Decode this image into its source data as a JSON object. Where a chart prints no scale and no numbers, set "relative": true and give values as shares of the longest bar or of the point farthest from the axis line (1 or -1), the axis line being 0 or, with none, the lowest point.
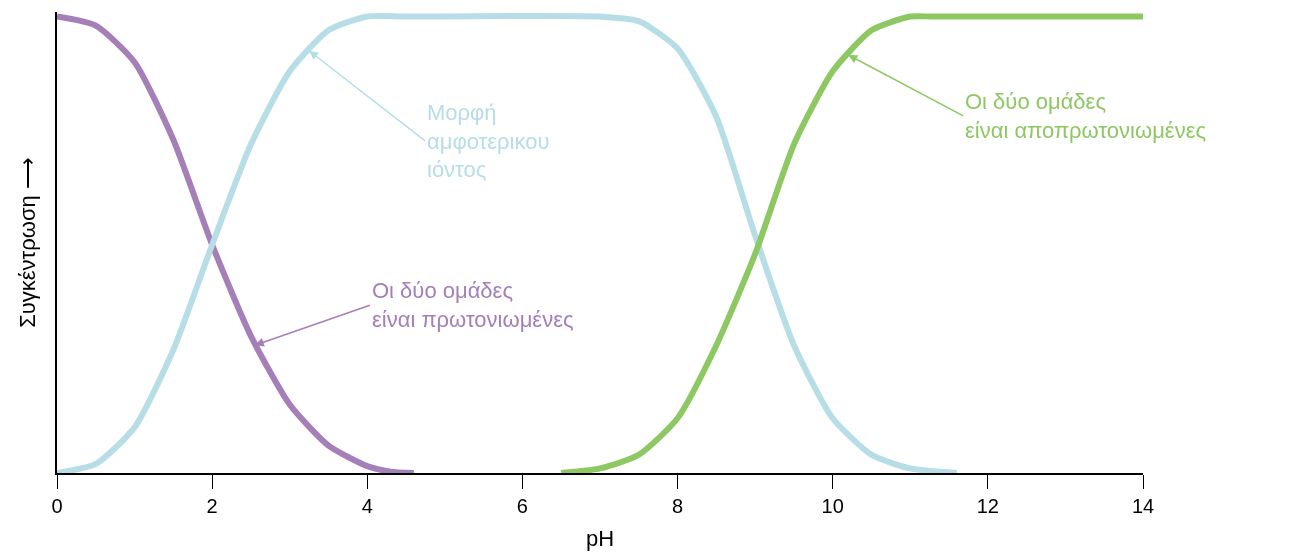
{
  "chart_data": {
    "type": "line",
    "relative": true,
    "xlabel": "pH",
    "ylabel": "Συγκέντρωση ⟶",
    "xlim": [
      0,
      14
    ],
    "xticks": [
      0,
      2,
      4,
      6,
      8,
      10,
      12,
      14
    ],
    "marker": "none",
    "line_style": "solid",
    "series": [
      {
        "color": "#a57fb8",
        "x": [
          0,
          0.5,
          1,
          1.5,
          2,
          2.5,
          3,
          3.5,
          4,
          4.3,
          4.6
        ],
        "values": [
          1,
          0.98,
          0.9,
          0.73,
          0.5,
          0.3,
          0.15,
          0.06,
          0.015,
          0.003,
          0
        ]
      },
      {
        "color": "#b7dde6",
        "x": [
          0,
          0.5,
          1,
          1.5,
          2,
          2.5,
          3,
          3.5,
          4,
          4.5,
          7,
          7.5,
          8,
          8.5,
          9,
          9.5,
          10,
          10.5,
          11,
          11.6
        ],
        "values": [
          0,
          0.02,
          0.1,
          0.27,
          0.5,
          0.72,
          0.88,
          0.97,
          1,
          1,
          1,
          0.99,
          0.93,
          0.78,
          0.52,
          0.28,
          0.12,
          0.04,
          0.01,
          0
        ]
      },
      {
        "color": "#8dc863",
        "x": [
          6.5,
          7,
          7.5,
          8,
          8.5,
          9,
          9.5,
          10,
          10.5,
          11,
          11.3,
          14
        ],
        "values": [
          0,
          0.01,
          0.04,
          0.12,
          0.28,
          0.48,
          0.72,
          0.88,
          0.97,
          1,
          1,
          1
        ]
      }
    ],
    "annotations": [
      {
        "text": "Οι δύο ομάδες\nείναι πρωτονιωμένες",
        "x": 2.55,
        "y": 0.28
      },
      {
        "text": "Μορφή\nαμφοτερικου\nιόντος",
        "x": 3.25,
        "y": 0.925
      },
      {
        "text": "Οι δύο ομάδες\nείναι αποπρωτονιωμένες",
        "x": 10.2,
        "y": 0.916
      }
    ]
  }
}
